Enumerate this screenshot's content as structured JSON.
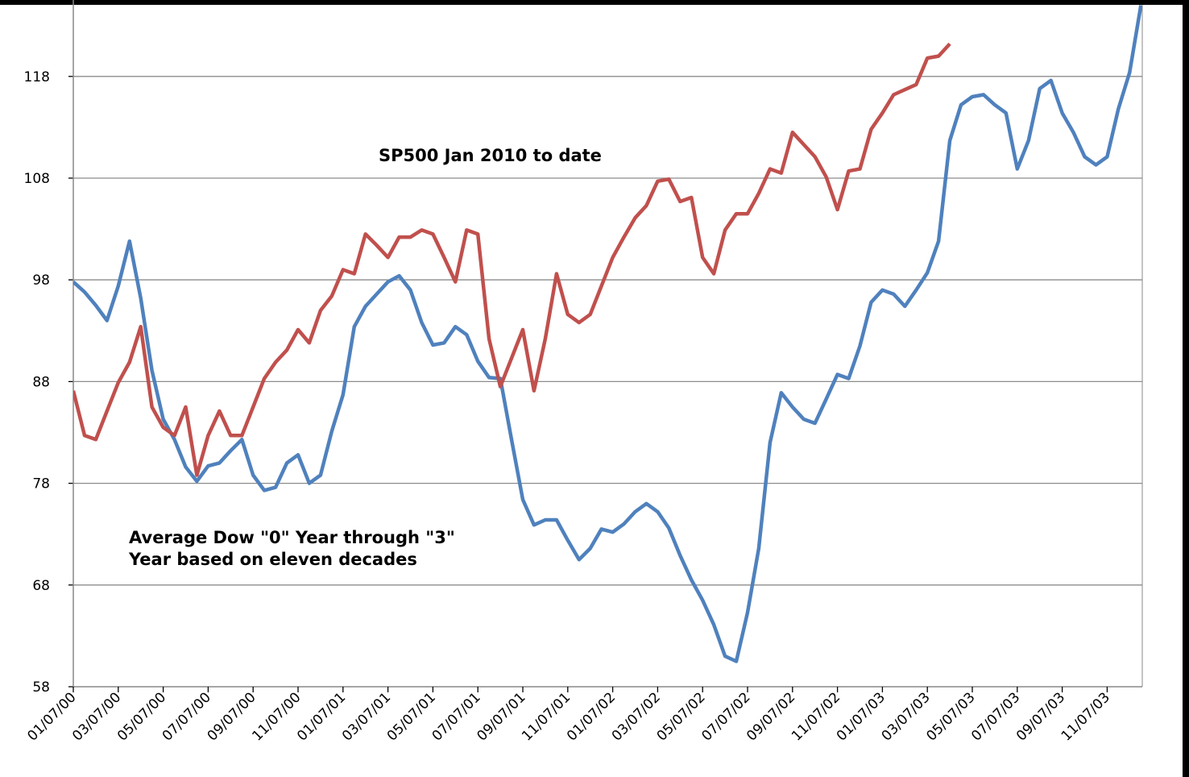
{
  "chart_data": {
    "type": "line",
    "categories": [
      "01/07/00",
      null,
      null,
      null,
      "03/07/00",
      null,
      null,
      null,
      "05/07/00",
      null,
      null,
      null,
      "07/07/00",
      null,
      null,
      null,
      "09/07/00",
      null,
      null,
      null,
      "11/07/00",
      null,
      null,
      null,
      "01/07/01",
      null,
      null,
      null,
      "03/07/01",
      null,
      null,
      null,
      "05/07/01",
      null,
      null,
      null,
      "07/07/01",
      null,
      null,
      null,
      "09/07/01",
      null,
      null,
      null,
      "11/07/01",
      null,
      null,
      null,
      "01/07/02",
      null,
      null,
      null,
      "03/07/02",
      null,
      null,
      null,
      "05/07/02",
      null,
      null,
      null,
      "07/07/02",
      null,
      null,
      null,
      "09/07/02",
      null,
      null,
      null,
      "11/07/02",
      null,
      null,
      null,
      "01/07/03",
      null,
      null,
      null,
      "03/07/03",
      null,
      null,
      null,
      "05/07/03",
      null,
      null,
      null,
      "07/07/03",
      null,
      null,
      null,
      "09/07/03",
      null,
      null,
      null,
      "11/07/03",
      null,
      null,
      null
    ],
    "series": [
      {
        "color": "#4f81bd",
        "values": [
          97.8,
          96.8,
          95.5,
          94.0,
          97.4,
          101.8,
          96.2,
          89.1,
          84.3,
          82.3,
          79.6,
          78.2,
          79.7,
          80,
          81.2,
          82.3,
          78.8,
          77.3,
          77.6,
          80,
          80.8,
          78,
          78.8,
          83.1,
          86.7,
          93.4,
          95.4,
          96.6,
          97.8,
          98.4,
          97,
          93.8,
          91.6,
          91.8,
          93.4,
          92.6,
          90,
          88.4,
          88.3,
          82.3,
          76.4,
          73.9,
          74.4,
          74.4,
          72.4,
          70.5,
          71.6,
          73.5,
          73.2,
          74,
          75.2,
          76,
          75.2,
          73.6,
          70.9,
          68.5,
          66.5,
          64.1,
          61,
          60.5,
          65.3,
          71.6,
          82,
          86.9,
          85.5,
          84.3,
          83.9,
          86.3,
          88.7,
          88.3,
          91.5,
          95.8,
          97,
          96.6,
          95.4,
          97,
          98.7,
          101.8,
          111.7,
          115.2,
          116,
          116.2,
          115.2,
          114.4,
          108.9,
          111.7,
          116.8,
          117.6,
          114.4,
          112.5,
          110.1,
          109.3,
          110.1,
          114.8,
          118.4,
          125
        ]
      },
      {
        "color": "#c0504d",
        "values": [
          87.1,
          82.7,
          82.3,
          85.1,
          87.9,
          89.9,
          93.4,
          85.5,
          83.5,
          82.7,
          85.5,
          78.8,
          82.7,
          85.1,
          82.7,
          82.7,
          85.5,
          88.3,
          89.9,
          91.1,
          93.1,
          91.8,
          95,
          96.4,
          99,
          98.6,
          102.5,
          101.4,
          100.2,
          102.2,
          102.2,
          102.9,
          102.5,
          100.2,
          97.8,
          102.9,
          102.5,
          92.2,
          87.5,
          90.3,
          93.1,
          87.1,
          92.2,
          98.6,
          94.6,
          93.8,
          94.6,
          97.4,
          100.2,
          102.2,
          104.1,
          105.3,
          107.7,
          107.9,
          105.7,
          106.1,
          100.2,
          98.6,
          102.9,
          104.5,
          104.5,
          106.5,
          108.9,
          108.5,
          112.5,
          111.3,
          110.1,
          108.1,
          104.9,
          108.7,
          108.9,
          112.8,
          114.4,
          116.2,
          116.7,
          117.2,
          119.8,
          120,
          121.2,
          null,
          null,
          null,
          null,
          null,
          null,
          null,
          null,
          null,
          null,
          null,
          null,
          null,
          null,
          null,
          null,
          null
        ]
      }
    ],
    "annotations": [
      {
        "text": [
          "SP500 Jan 2010 to date"
        ],
        "color": "#953735"
      },
      {
        "text": [
          "Average Dow \"0\" Year through \"3\"",
          "Year based on eleven decades"
        ],
        "color": "#0000ff"
      }
    ],
    "ylim": [
      58,
      125.5
    ],
    "yticks": [
      58,
      68,
      78,
      88,
      98,
      108,
      118
    ],
    "grid": true
  }
}
